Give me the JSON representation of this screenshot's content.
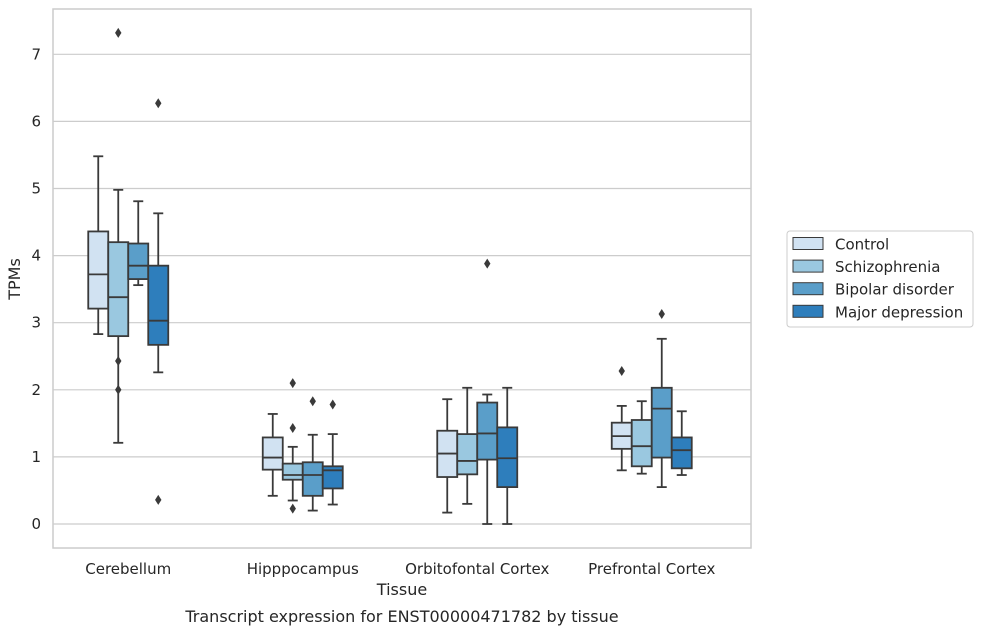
{
  "chart_data": {
    "type": "box",
    "title": "",
    "caption": "Transcript expression for ENST00000471782 by tissue",
    "xlabel": "Tissue",
    "ylabel": "TPMs",
    "ylim": [
      -0.35,
      7.7
    ],
    "yticks": [
      0,
      1,
      2,
      3,
      4,
      5,
      6,
      7
    ],
    "grid": "horizontal",
    "legend_position": "right",
    "categories": [
      "Cerebellum",
      "Hipppocampus",
      "Orbitofontal Cortex",
      "Prefrontal Cortex"
    ],
    "series": [
      {
        "name": "Control",
        "color": "#d1e2f2",
        "boxes": [
          {
            "whislo": 2.83,
            "q1": 3.21,
            "med": 3.72,
            "q3": 4.36,
            "whishi": 5.48,
            "fliers": []
          },
          {
            "whislo": 0.42,
            "q1": 0.81,
            "med": 0.99,
            "q3": 1.29,
            "whishi": 1.64,
            "fliers": []
          },
          {
            "whislo": 0.17,
            "q1": 0.7,
            "med": 1.05,
            "q3": 1.39,
            "whishi": 1.86,
            "fliers": []
          },
          {
            "whislo": 0.8,
            "q1": 1.12,
            "med": 1.31,
            "q3": 1.51,
            "whishi": 1.76,
            "fliers": [
              2.28
            ]
          }
        ]
      },
      {
        "name": "Schizophrenia",
        "color": "#9ac8e0",
        "boxes": [
          {
            "whislo": 1.21,
            "q1": 2.8,
            "med": 3.38,
            "q3": 4.2,
            "whishi": 4.98,
            "fliers": [
              2.0,
              2.43,
              7.32
            ]
          },
          {
            "whislo": 0.35,
            "q1": 0.66,
            "med": 0.73,
            "q3": 0.9,
            "whishi": 1.15,
            "fliers": [
              0.23,
              1.43,
              2.1
            ]
          },
          {
            "whislo": 0.3,
            "q1": 0.74,
            "med": 0.94,
            "q3": 1.34,
            "whishi": 2.03,
            "fliers": []
          },
          {
            "whislo": 0.75,
            "q1": 0.86,
            "med": 1.16,
            "q3": 1.55,
            "whishi": 1.83,
            "fliers": []
          }
        ]
      },
      {
        "name": "Bipolar disorder",
        "color": "#5a9ec9",
        "boxes": [
          {
            "whislo": 3.56,
            "q1": 3.65,
            "med": 3.85,
            "q3": 4.18,
            "whishi": 4.81,
            "fliers": []
          },
          {
            "whislo": 0.2,
            "q1": 0.42,
            "med": 0.73,
            "q3": 0.92,
            "whishi": 1.33,
            "fliers": [
              1.83
            ]
          },
          {
            "whislo": 0.0,
            "q1": 0.96,
            "med": 1.35,
            "q3": 1.81,
            "whishi": 1.93,
            "fliers": [
              3.88
            ]
          },
          {
            "whislo": 0.55,
            "q1": 0.99,
            "med": 1.72,
            "q3": 2.03,
            "whishi": 2.76,
            "fliers": [
              3.13
            ]
          }
        ]
      },
      {
        "name": "Major depression",
        "color": "#2e7ebc",
        "boxes": [
          {
            "whislo": 2.26,
            "q1": 2.67,
            "med": 3.03,
            "q3": 3.85,
            "whishi": 4.63,
            "fliers": [
              0.36,
              6.27
            ]
          },
          {
            "whislo": 0.29,
            "q1": 0.53,
            "med": 0.8,
            "q3": 0.86,
            "whishi": 1.34,
            "fliers": [
              1.78
            ]
          },
          {
            "whislo": 0.0,
            "q1": 0.55,
            "med": 0.98,
            "q3": 1.44,
            "whishi": 2.03,
            "fliers": []
          },
          {
            "whislo": 0.73,
            "q1": 0.83,
            "med": 1.1,
            "q3": 1.29,
            "whishi": 1.68,
            "fliers": []
          }
        ]
      }
    ]
  }
}
